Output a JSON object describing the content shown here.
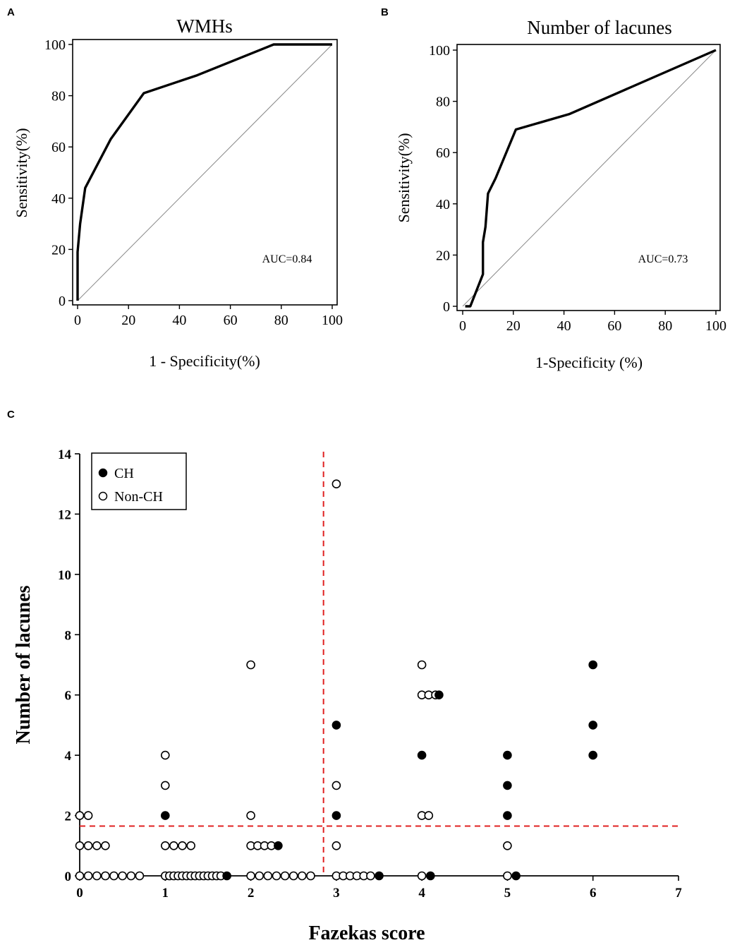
{
  "chart_data": [
    {
      "panel": "A",
      "type": "line",
      "title": "WMHs",
      "xlabel": "1 - Specificity(%)",
      "ylabel": "Sensitivity(%)",
      "xlim": [
        0,
        100
      ],
      "ylim": [
        0,
        100
      ],
      "xticks": [
        "0",
        "20",
        "40",
        "60",
        "80",
        "100"
      ],
      "yticks": [
        "0",
        "20",
        "40",
        "60",
        "80",
        "100"
      ],
      "annotation": "AUC=0.84",
      "series": [
        {
          "name": "ROC",
          "x": [
            0,
            0,
            1,
            3,
            13,
            26,
            47,
            77,
            100
          ],
          "y": [
            0,
            19,
            30,
            44,
            63,
            81,
            88,
            100,
            100
          ]
        },
        {
          "name": "reference",
          "x": [
            0,
            100
          ],
          "y": [
            0,
            100
          ]
        }
      ]
    },
    {
      "panel": "B",
      "type": "line",
      "title": "Number of lacunes",
      "xlabel": "1-Specificity (%)",
      "ylabel": "Sensitivity(%)",
      "xlim": [
        0,
        100
      ],
      "ylim": [
        0,
        100
      ],
      "xticks": [
        "0",
        "20",
        "40",
        "60",
        "80",
        "100"
      ],
      "yticks": [
        "0",
        "20",
        "40",
        "60",
        "80",
        "100"
      ],
      "annotation": "AUC=0.73",
      "series": [
        {
          "name": "ROC",
          "x": [
            1,
            3,
            8,
            8,
            9,
            9.5,
            10,
            13,
            21,
            42,
            100
          ],
          "y": [
            0,
            0,
            12.5,
            25,
            31,
            37.5,
            44,
            50,
            69,
            75,
            100
          ]
        },
        {
          "name": "reference",
          "x": [
            0,
            100
          ],
          "y": [
            0,
            100
          ]
        }
      ]
    },
    {
      "panel": "C",
      "type": "scatter",
      "xlabel": "Fazekas score",
      "ylabel": "Number of lacunes",
      "xlim": [
        0,
        7
      ],
      "ylim": [
        0,
        14
      ],
      "xticks": [
        "0",
        "1",
        "2",
        "3",
        "4",
        "5",
        "6",
        "7"
      ],
      "yticks": [
        "0",
        "2",
        "4",
        "6",
        "8",
        "10",
        "12",
        "14"
      ],
      "legend": [
        "CH",
        "Non-CH"
      ],
      "cutoff_x": 2.85,
      "cutoff_y": 1.65,
      "series": [
        {
          "name": "CH",
          "points": [
            [
              1.72,
              0
            ],
            [
              2.32,
              1
            ],
            [
              1.0,
              2
            ],
            [
              3.0,
              5
            ],
            [
              3.0,
              2
            ],
            [
              3.5,
              0
            ],
            [
              4.0,
              4
            ],
            [
              4.2,
              6
            ],
            [
              4.1,
              0
            ],
            [
              5.0,
              4
            ],
            [
              5.0,
              3
            ],
            [
              5.0,
              2
            ],
            [
              5.1,
              0
            ],
            [
              6.0,
              7
            ],
            [
              6.0,
              5
            ],
            [
              6.0,
              4
            ]
          ]
        },
        {
          "name": "Non-CH",
          "points": [
            [
              0.0,
              2
            ],
            [
              0.1,
              2
            ],
            [
              0.0,
              1
            ],
            [
              0.1,
              1
            ],
            [
              0.2,
              1
            ],
            [
              0.3,
              1
            ],
            [
              0.0,
              0
            ],
            [
              0.1,
              0
            ],
            [
              0.2,
              0
            ],
            [
              0.3,
              0
            ],
            [
              0.4,
              0
            ],
            [
              0.5,
              0
            ],
            [
              0.6,
              0
            ],
            [
              0.7,
              0
            ],
            [
              1.0,
              4
            ],
            [
              1.0,
              3
            ],
            [
              1.0,
              1
            ],
            [
              1.1,
              1
            ],
            [
              1.2,
              1
            ],
            [
              1.3,
              1
            ],
            [
              1.0,
              0
            ],
            [
              1.05,
              0
            ],
            [
              1.1,
              0
            ],
            [
              1.15,
              0
            ],
            [
              1.2,
              0
            ],
            [
              1.25,
              0
            ],
            [
              1.3,
              0
            ],
            [
              1.35,
              0
            ],
            [
              1.4,
              0
            ],
            [
              1.45,
              0
            ],
            [
              1.5,
              0
            ],
            [
              1.55,
              0
            ],
            [
              1.6,
              0
            ],
            [
              1.65,
              0
            ],
            [
              2.0,
              7
            ],
            [
              2.0,
              2
            ],
            [
              2.0,
              1
            ],
            [
              2.08,
              1
            ],
            [
              2.16,
              1
            ],
            [
              2.24,
              1
            ],
            [
              2.0,
              0
            ],
            [
              2.1,
              0
            ],
            [
              2.2,
              0
            ],
            [
              2.3,
              0
            ],
            [
              2.4,
              0
            ],
            [
              2.5,
              0
            ],
            [
              2.6,
              0
            ],
            [
              2.7,
              0
            ],
            [
              3.0,
              13
            ],
            [
              3.0,
              3
            ],
            [
              3.0,
              1
            ],
            [
              3.0,
              0
            ],
            [
              3.08,
              0
            ],
            [
              3.16,
              0
            ],
            [
              3.24,
              0
            ],
            [
              3.32,
              0
            ],
            [
              3.4,
              0
            ],
            [
              4.0,
              7
            ],
            [
              4.0,
              6
            ],
            [
              4.08,
              6
            ],
            [
              4.16,
              6
            ],
            [
              4.0,
              2
            ],
            [
              4.08,
              2
            ],
            [
              4.0,
              0
            ],
            [
              5.0,
              1
            ],
            [
              5.0,
              0
            ]
          ]
        }
      ]
    }
  ]
}
